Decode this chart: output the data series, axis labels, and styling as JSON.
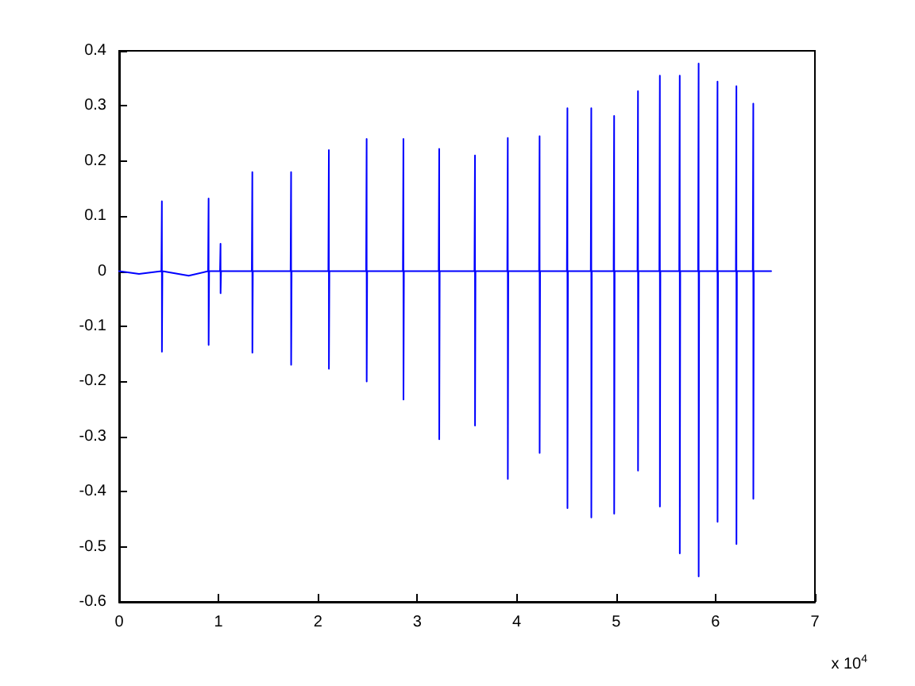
{
  "chart_data": {
    "type": "line",
    "annotations": [
      "x 10$^{4}$"
    ],
    "x": [
      0,
      0.2,
      0.425,
      0.43,
      0.4305,
      0.435,
      0.7,
      0.895,
      0.9,
      0.9005,
      0.905,
      1.015,
      1.02,
      1.0205,
      1.025,
      1.335,
      1.34,
      1.3405,
      1.345,
      1.725,
      1.73,
      1.7305,
      1.735,
      2.105,
      2.11,
      2.1105,
      2.115,
      2.485,
      2.49,
      2.4905,
      2.495,
      2.855,
      2.86,
      2.8605,
      2.865,
      3.215,
      3.22,
      3.2205,
      3.225,
      3.575,
      3.58,
      3.5805,
      3.585,
      3.905,
      3.91,
      3.9105,
      3.915,
      4.225,
      4.23,
      4.2305,
      4.235,
      4.505,
      4.51,
      4.5105,
      4.515,
      4.745,
      4.75,
      4.7505,
      4.755,
      4.975,
      4.98,
      4.9805,
      4.985,
      5.215,
      5.22,
      5.2205,
      5.225,
      5.435,
      5.44,
      5.4405,
      5.445,
      5.635,
      5.64,
      5.6405,
      5.645,
      5.825,
      5.83,
      5.8305,
      5.835,
      6.015,
      6.02,
      6.0205,
      6.025,
      6.205,
      6.21,
      6.2105,
      6.215,
      6.375,
      6.38,
      6.3805,
      6.385,
      6.56
    ],
    "series": [
      {
        "color": "#0000ff",
        "values": [
          0,
          -0.005,
          0,
          0.127,
          -0.146,
          0,
          -0.008,
          0,
          0.132,
          -0.134,
          0,
          0,
          0.05,
          -0.04,
          0,
          0,
          0.18,
          -0.148,
          0,
          0,
          0.18,
          -0.17,
          0,
          0,
          0.22,
          -0.177,
          0,
          0,
          0.24,
          -0.2,
          0,
          0,
          0.24,
          -0.233,
          0,
          0,
          0.222,
          -0.305,
          0,
          0,
          0.21,
          -0.28,
          0,
          0,
          0.242,
          -0.377,
          0,
          0,
          0.245,
          -0.33,
          0,
          0,
          0.296,
          -0.43,
          0,
          0,
          0.296,
          -0.447,
          0,
          0,
          0.282,
          -0.44,
          0,
          0,
          0.327,
          -0.362,
          0,
          0,
          0.355,
          -0.427,
          0,
          0,
          0.355,
          -0.512,
          0,
          0,
          0.377,
          -0.554,
          0,
          0,
          0.344,
          -0.455,
          0,
          0,
          0.336,
          -0.495,
          0,
          0,
          0.304,
          -0.413,
          0,
          0
        ]
      }
    ],
    "xlim": [
      0,
      7
    ],
    "xticks": [
      0,
      1,
      2,
      3,
      4,
      5,
      6,
      7
    ],
    "ylim": [
      -0.6,
      0.4
    ],
    "yticks": [
      -0.6,
      -0.5,
      -0.4,
      -0.3,
      -0.2,
      -0.1,
      0,
      0.1,
      0.2,
      0.3,
      0.4
    ],
    "grid": false,
    "marker": "none",
    "line_style": "solid"
  }
}
